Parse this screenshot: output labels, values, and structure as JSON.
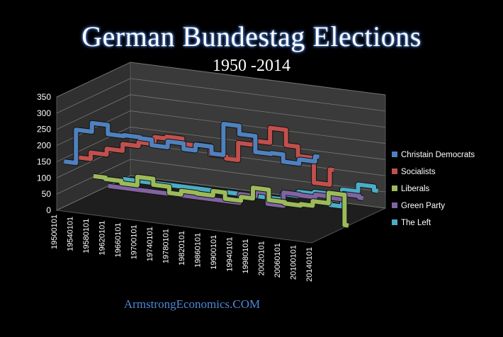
{
  "chart_data": {
    "type": "line",
    "title": "German Bundestag  Elections",
    "subtitle": "1950 -2014",
    "footer_text": "ArmstrongEconomics.COM",
    "y_ticks": [
      "0",
      "50",
      "100",
      "150",
      "200",
      "250",
      "300",
      "350"
    ],
    "ylim": [
      0,
      350
    ],
    "x_ticks": [
      "19500101",
      "19540101",
      "19580101",
      "19620101",
      "19660101",
      "19700101",
      "19740101",
      "19780101",
      "19820101",
      "19860101",
      "19900101",
      "19940101",
      "19980101",
      "20020101",
      "20060101",
      "20100101",
      "20140101"
    ],
    "x_range": [
      1950,
      2014
    ],
    "legend_position": "right",
    "grid": true,
    "series": [
      {
        "name": "Christain Democrats",
        "color": "#4f81bd",
        "x": [
          1950,
          1953,
          1957,
          1961,
          1965,
          1969,
          1972,
          1976,
          1980,
          1983,
          1987,
          1990,
          1994,
          1998,
          2002,
          2005,
          2009,
          2013
        ],
        "y": [
          140,
          243,
          270,
          242,
          245,
          242,
          225,
          243,
          226,
          244,
          223,
          319,
          294,
          245,
          248,
          226,
          239,
          255
        ]
      },
      {
        "name": "Socialists",
        "color": "#c0504d",
        "x": [
          1950,
          1953,
          1957,
          1961,
          1965,
          1969,
          1972,
          1976,
          1980,
          1983,
          1987,
          1990,
          1994,
          1998,
          2002,
          2005,
          2009,
          2013
        ],
        "y": [
          131,
          151,
          169,
          190,
          202,
          224,
          230,
          214,
          218,
          193,
          186,
          239,
          252,
          298,
          251,
          222,
          146,
          193
        ]
      },
      {
        "name": "Liberals",
        "color": "#9bbb59",
        "x": [
          1950,
          1953,
          1957,
          1961,
          1965,
          1969,
          1972,
          1976,
          1980,
          1983,
          1987,
          1990,
          1994,
          1998,
          2002,
          2005,
          2009,
          2013
        ],
        "y": [
          52,
          48,
          41,
          67,
          49,
          30,
          41,
          39,
          53,
          34,
          46,
          79,
          47,
          43,
          47,
          61,
          93,
          0
        ]
      },
      {
        "name": "Green Party",
        "color": "#8064a2",
        "x": [
          1950,
          1980,
          1983,
          1987,
          1990,
          1994,
          1998,
          2002,
          2005,
          2009,
          2013
        ],
        "y": [
          0,
          0,
          27,
          42,
          8,
          49,
          47,
          55,
          51,
          68,
          63
        ]
      },
      {
        "name": "The Left",
        "color": "#4bacc6",
        "x": [
          1950,
          1990,
          1994,
          1998,
          2002,
          2005,
          2009,
          2013
        ],
        "y": [
          0,
          17,
          30,
          36,
          2,
          54,
          76,
          64
        ]
      }
    ]
  }
}
